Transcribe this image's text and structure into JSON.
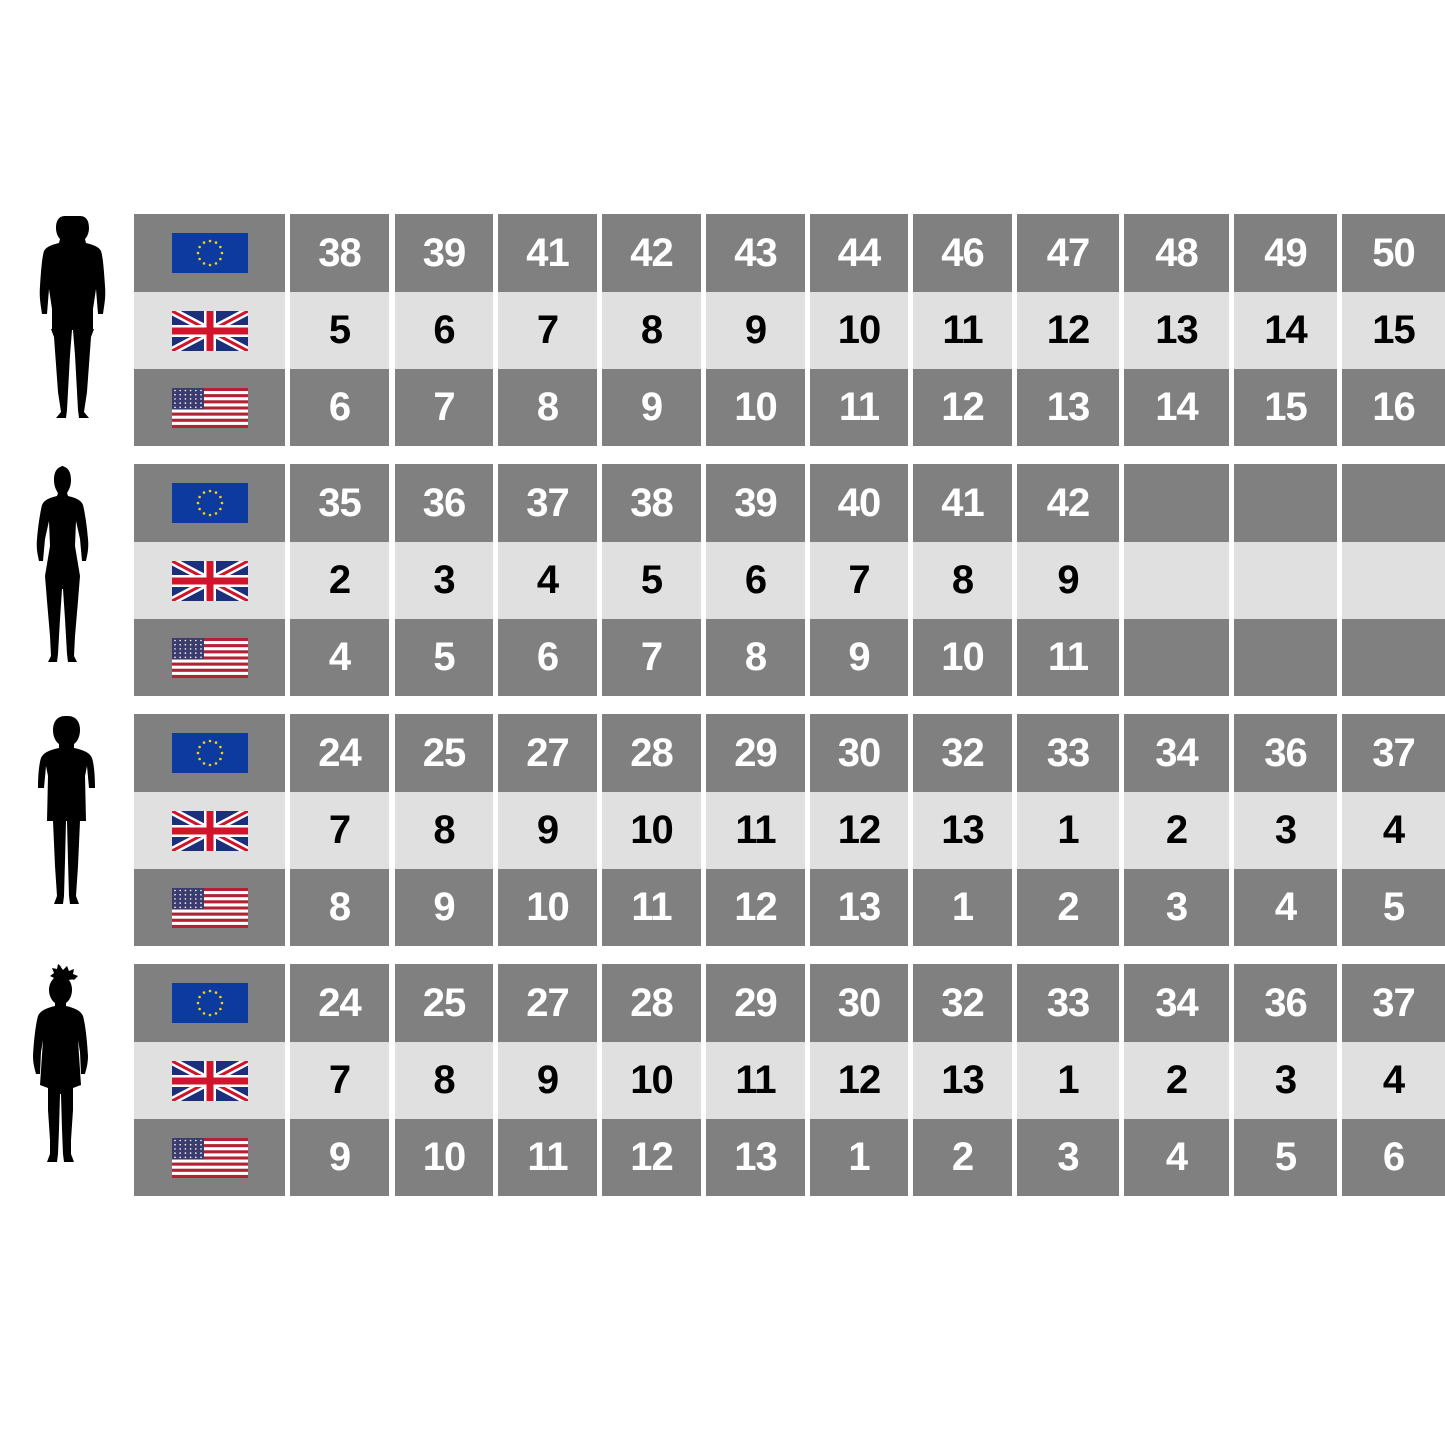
{
  "colors": {
    "dark_row": "#808080",
    "light_row": "#e0e0e0",
    "dark_text": "#ffffff",
    "light_text": "#000000"
  },
  "row_labels": [
    {
      "icon": "eu-flag-icon",
      "system": "EU"
    },
    {
      "icon": "uk-flag-icon",
      "system": "UK"
    },
    {
      "icon": "us-flag-icon",
      "system": "US"
    }
  ],
  "groups": [
    {
      "figure": "man-silhouette-icon",
      "eu": [
        "38",
        "39",
        "41",
        "42",
        "43",
        "44",
        "46",
        "47",
        "48",
        "49",
        "50"
      ],
      "uk": [
        "5",
        "6",
        "7",
        "8",
        "9",
        "10",
        "11",
        "12",
        "13",
        "14",
        "15"
      ],
      "us": [
        "6",
        "7",
        "8",
        "9",
        "10",
        "11",
        "12",
        "13",
        "14",
        "15",
        "16"
      ]
    },
    {
      "figure": "woman-silhouette-icon",
      "eu": [
        "35",
        "36",
        "37",
        "38",
        "39",
        "40",
        "41",
        "42",
        "",
        "",
        ""
      ],
      "uk": [
        "2",
        "3",
        "4",
        "5",
        "6",
        "7",
        "8",
        "9",
        "",
        "",
        ""
      ],
      "us": [
        "4",
        "5",
        "6",
        "7",
        "8",
        "9",
        "10",
        "11",
        "",
        "",
        ""
      ]
    },
    {
      "figure": "boy-silhouette-icon",
      "eu": [
        "24",
        "25",
        "27",
        "28",
        "29",
        "30",
        "32",
        "33",
        "34",
        "36",
        "37"
      ],
      "uk": [
        "7",
        "8",
        "9",
        "10",
        "11",
        "12",
        "13",
        "1",
        "2",
        "3",
        "4"
      ],
      "us": [
        "8",
        "9",
        "10",
        "11",
        "12",
        "13",
        "1",
        "2",
        "3",
        "4",
        "5"
      ]
    },
    {
      "figure": "girl-silhouette-icon",
      "eu": [
        "24",
        "25",
        "27",
        "28",
        "29",
        "30",
        "32",
        "33",
        "34",
        "36",
        "37"
      ],
      "uk": [
        "7",
        "8",
        "9",
        "10",
        "11",
        "12",
        "13",
        "1",
        "2",
        "3",
        "4"
      ],
      "us": [
        "9",
        "10",
        "11",
        "12",
        "13",
        "1",
        "2",
        "3",
        "4",
        "5",
        "6"
      ]
    }
  ]
}
